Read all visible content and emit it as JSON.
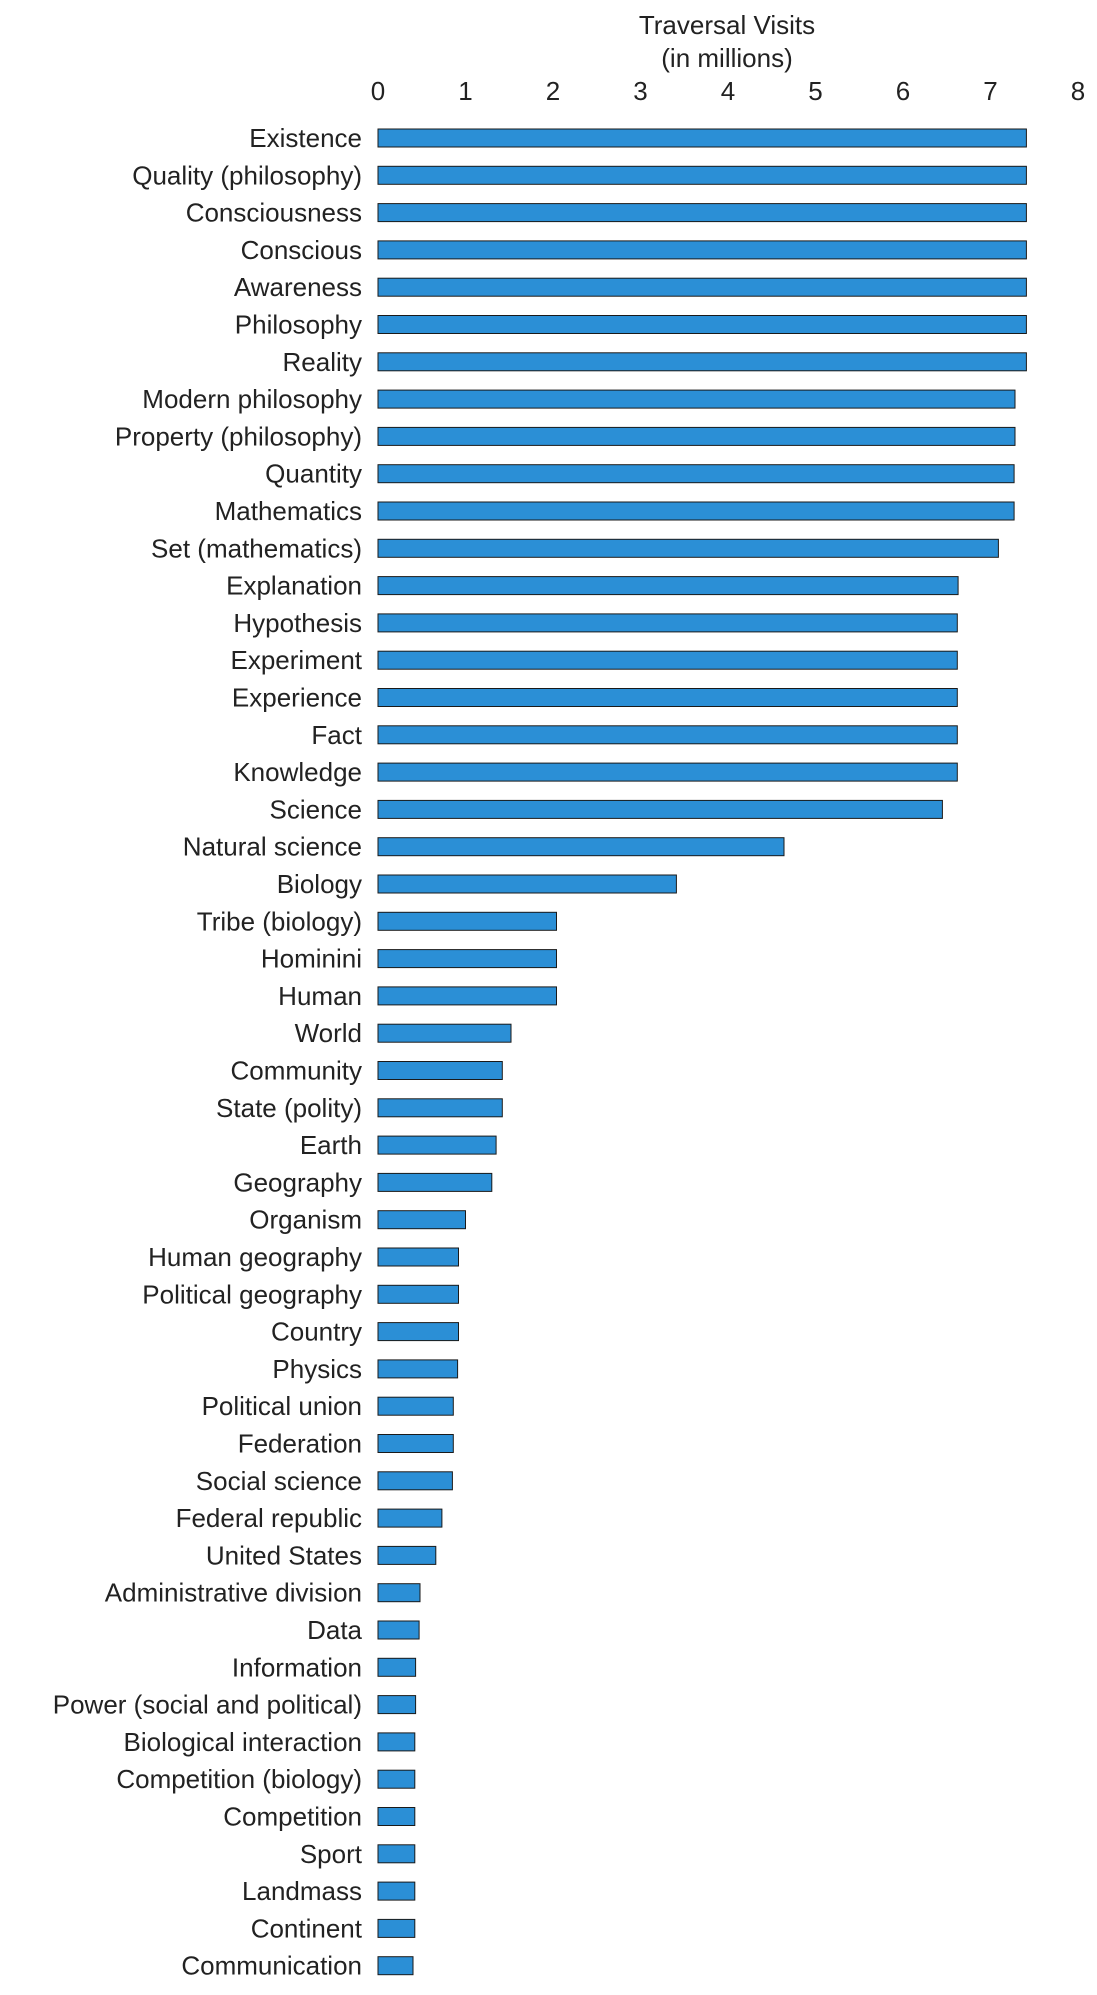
{
  "chart_data": {
    "type": "bar",
    "orientation": "horizontal",
    "xlabel_line1": "Traversal Visits",
    "xlabel_line2": "(in millions)",
    "xlim": [
      0,
      8
    ],
    "xticks": [
      "0",
      "1",
      "2",
      "3",
      "4",
      "5",
      "6",
      "7",
      "8"
    ],
    "grid": false,
    "bar_color": "#2b8fd6",
    "categories": [
      "Existence",
      "Quality (philosophy)",
      "Consciousness",
      "Conscious",
      "Awareness",
      "Philosophy",
      "Reality",
      "Modern philosophy",
      "Property (philosophy)",
      "Quantity",
      "Mathematics",
      "Set (mathematics)",
      "Explanation",
      "Hypothesis",
      "Experiment",
      "Experience",
      "Fact",
      "Knowledge",
      "Science",
      "Natural science",
      "Biology",
      "Tribe (biology)",
      "Hominini",
      "Human",
      "World",
      "Community",
      "State (polity)",
      "Earth",
      "Geography",
      "Organism",
      "Human geography",
      "Political geography",
      "Country",
      "Physics",
      "Political union",
      "Federation",
      "Social science",
      "Federal republic",
      "United States",
      "Administrative division",
      "Data",
      "Information",
      "Power (social and political)",
      "Biological interaction",
      "Competition (biology)",
      "Competition",
      "Sport",
      "Landmass",
      "Continent",
      "Communication"
    ],
    "values": [
      7.41,
      7.41,
      7.41,
      7.41,
      7.41,
      7.41,
      7.41,
      7.28,
      7.28,
      7.27,
      7.27,
      7.09,
      6.63,
      6.62,
      6.62,
      6.62,
      6.62,
      6.62,
      6.45,
      4.64,
      3.41,
      2.04,
      2.04,
      2.04,
      1.52,
      1.42,
      1.42,
      1.35,
      1.3,
      1.0,
      0.92,
      0.92,
      0.92,
      0.91,
      0.86,
      0.86,
      0.85,
      0.73,
      0.66,
      0.48,
      0.47,
      0.43,
      0.43,
      0.42,
      0.42,
      0.42,
      0.42,
      0.42,
      0.42,
      0.4
    ]
  }
}
